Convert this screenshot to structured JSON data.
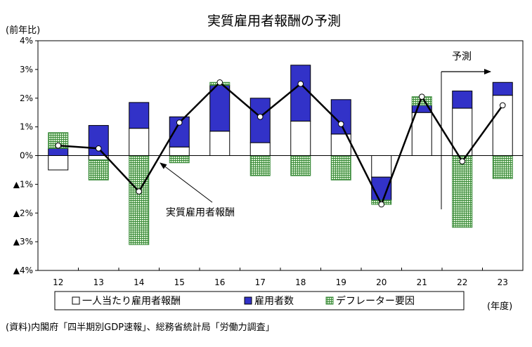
{
  "chart_data": {
    "type": "bar",
    "title": "実質雇用者報酬の予測",
    "ylabel": "(前年比)",
    "xlabel": "(年度)",
    "categories": [
      "12",
      "13",
      "14",
      "15",
      "16",
      "17",
      "18",
      "19",
      "20",
      "21",
      "22",
      "23"
    ],
    "ylim": [
      -4,
      4
    ],
    "y_ticks": [
      {
        "value": 4,
        "label": "4%"
      },
      {
        "value": 3,
        "label": "3%"
      },
      {
        "value": 2,
        "label": "2%"
      },
      {
        "value": 1,
        "label": "1%"
      },
      {
        "value": 0,
        "label": "0%"
      },
      {
        "value": -1,
        "label": "▲1%"
      },
      {
        "value": -2,
        "label": "▲2%"
      },
      {
        "value": -3,
        "label": "▲3%"
      },
      {
        "value": -4,
        "label": "▲4%"
      }
    ],
    "stacked": true,
    "series": [
      {
        "name": "一人当たり雇用者報酬",
        "values": [
          -0.5,
          -0.15,
          0.95,
          0.3,
          0.85,
          0.45,
          1.2,
          0.75,
          -0.75,
          1.5,
          1.65,
          2.1
        ]
      },
      {
        "name": "雇用者数",
        "values": [
          0.25,
          1.05,
          0.9,
          1.05,
          1.6,
          1.55,
          1.95,
          1.2,
          -0.8,
          0.25,
          0.6,
          0.45
        ]
      },
      {
        "name": "デフレーター要因",
        "values": [
          0.55,
          -0.7,
          -3.1,
          -0.25,
          0.1,
          -0.7,
          -0.7,
          -0.85,
          -0.15,
          0.3,
          -2.5,
          -0.8
        ]
      }
    ],
    "line": {
      "name": "実質雇用者報酬",
      "values": [
        0.35,
        0.25,
        -1.25,
        1.15,
        2.55,
        1.35,
        2.5,
        1.1,
        -1.7,
        2.05,
        -0.2,
        1.75
      ]
    },
    "annotations": [
      {
        "text": "実質雇用者報酬",
        "target_category": "14"
      },
      {
        "text": "予測",
        "from_category": "22"
      }
    ],
    "grid": false,
    "legend_position": "bottom"
  },
  "source": "(資料)内閣府「四半期別GDP速報」、総務省統計局「労働力調査」",
  "colors": {
    "compensation_fill": "#ffffff",
    "employees_fill": "#3232c8",
    "deflator_fill": "#d8f0d0",
    "deflator_hatch": "#3a8a3a",
    "line": "#000000"
  }
}
